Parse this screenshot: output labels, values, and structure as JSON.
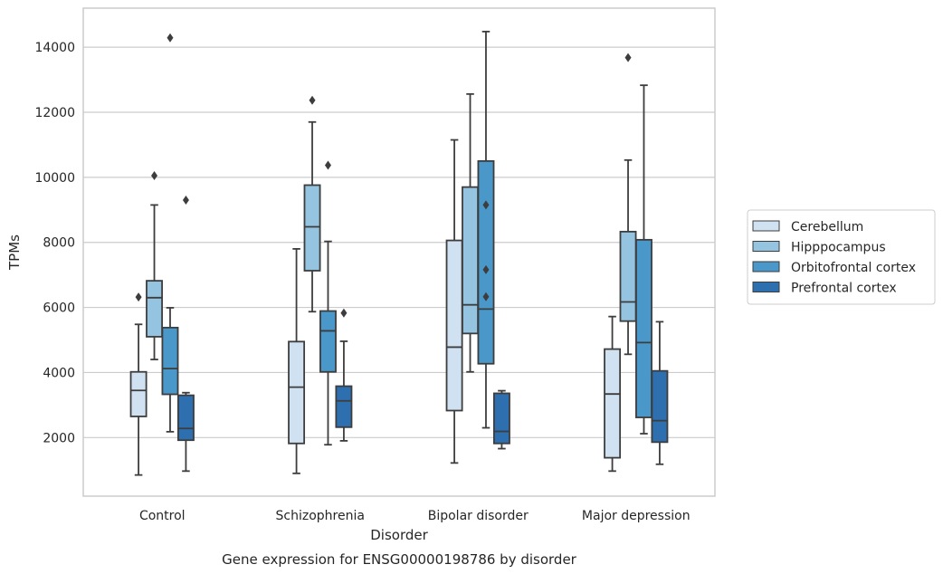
{
  "chart_data": {
    "type": "box",
    "xlabel": "Disorder",
    "ylabel": "TPMs",
    "caption": "Gene expression for ENSG00000198786 by disorder",
    "ylim": [
      200,
      15200
    ],
    "yticks": [
      2000,
      4000,
      6000,
      8000,
      10000,
      12000,
      14000
    ],
    "grid": "horizontal",
    "legend_position": "right",
    "categories": [
      "Control",
      "Schizophrenia",
      "Bipolar disorder",
      "Major depression"
    ],
    "series": [
      {
        "name": "Cerebellum",
        "color": "#d0e1f2",
        "boxes": [
          {
            "whisker_low": 850,
            "q1": 2650,
            "median": 3450,
            "q3": 4020,
            "whisker_high": 5480,
            "outliers": [
              6320
            ]
          },
          {
            "whisker_low": 900,
            "q1": 1820,
            "median": 3550,
            "q3": 4950,
            "whisker_high": 7800,
            "outliers": []
          },
          {
            "whisker_low": 1220,
            "q1": 2830,
            "median": 4780,
            "q3": 8060,
            "whisker_high": 11150,
            "outliers": []
          },
          {
            "whisker_low": 970,
            "q1": 1380,
            "median": 3340,
            "q3": 4720,
            "whisker_high": 5720,
            "outliers": []
          }
        ]
      },
      {
        "name": "Hipppocampus",
        "color": "#94c4df",
        "boxes": [
          {
            "whisker_low": 4400,
            "q1": 5100,
            "median": 6300,
            "q3": 6820,
            "whisker_high": 9150,
            "outliers": [
              10050
            ]
          },
          {
            "whisker_low": 5870,
            "q1": 7130,
            "median": 8480,
            "q3": 9760,
            "whisker_high": 11700,
            "outliers": [
              12370
            ]
          },
          {
            "whisker_low": 4020,
            "q1": 5200,
            "median": 6080,
            "q3": 9700,
            "whisker_high": 12560,
            "outliers": []
          },
          {
            "whisker_low": 4560,
            "q1": 5580,
            "median": 6170,
            "q3": 8330,
            "whisker_high": 10530,
            "outliers": [
              13680
            ]
          }
        ]
      },
      {
        "name": "Orbitofrontal cortex",
        "color": "#4a98c9",
        "boxes": [
          {
            "whisker_low": 2180,
            "q1": 3330,
            "median": 4120,
            "q3": 5380,
            "whisker_high": 5990,
            "outliers": [
              14290
            ]
          },
          {
            "whisker_low": 1780,
            "q1": 4020,
            "median": 5280,
            "q3": 5890,
            "whisker_high": 8030,
            "outliers": [
              10370
            ]
          },
          {
            "whisker_low": 2300,
            "q1": 4270,
            "median": 5950,
            "q3": 10500,
            "whisker_high": 14480,
            "outliers": [
              6330,
              7160,
              9150
            ]
          },
          {
            "whisker_low": 2120,
            "q1": 2620,
            "median": 4920,
            "q3": 8080,
            "whisker_high": 12830,
            "outliers": []
          }
        ]
      },
      {
        "name": "Prefrontal cortex",
        "color": "#2e6fb0",
        "boxes": [
          {
            "whisker_low": 970,
            "q1": 1920,
            "median": 2280,
            "q3": 3300,
            "whisker_high": 3380,
            "outliers": [
              9300
            ]
          },
          {
            "whisker_low": 1900,
            "q1": 2320,
            "median": 3130,
            "q3": 3580,
            "whisker_high": 4960,
            "outliers": [
              5830
            ]
          },
          {
            "whisker_low": 1660,
            "q1": 1820,
            "median": 2190,
            "q3": 3360,
            "whisker_high": 3440,
            "outliers": []
          },
          {
            "whisker_low": 1180,
            "q1": 1860,
            "median": 2520,
            "q3": 4050,
            "whisker_high": 5560,
            "outliers": []
          }
        ]
      }
    ]
  }
}
